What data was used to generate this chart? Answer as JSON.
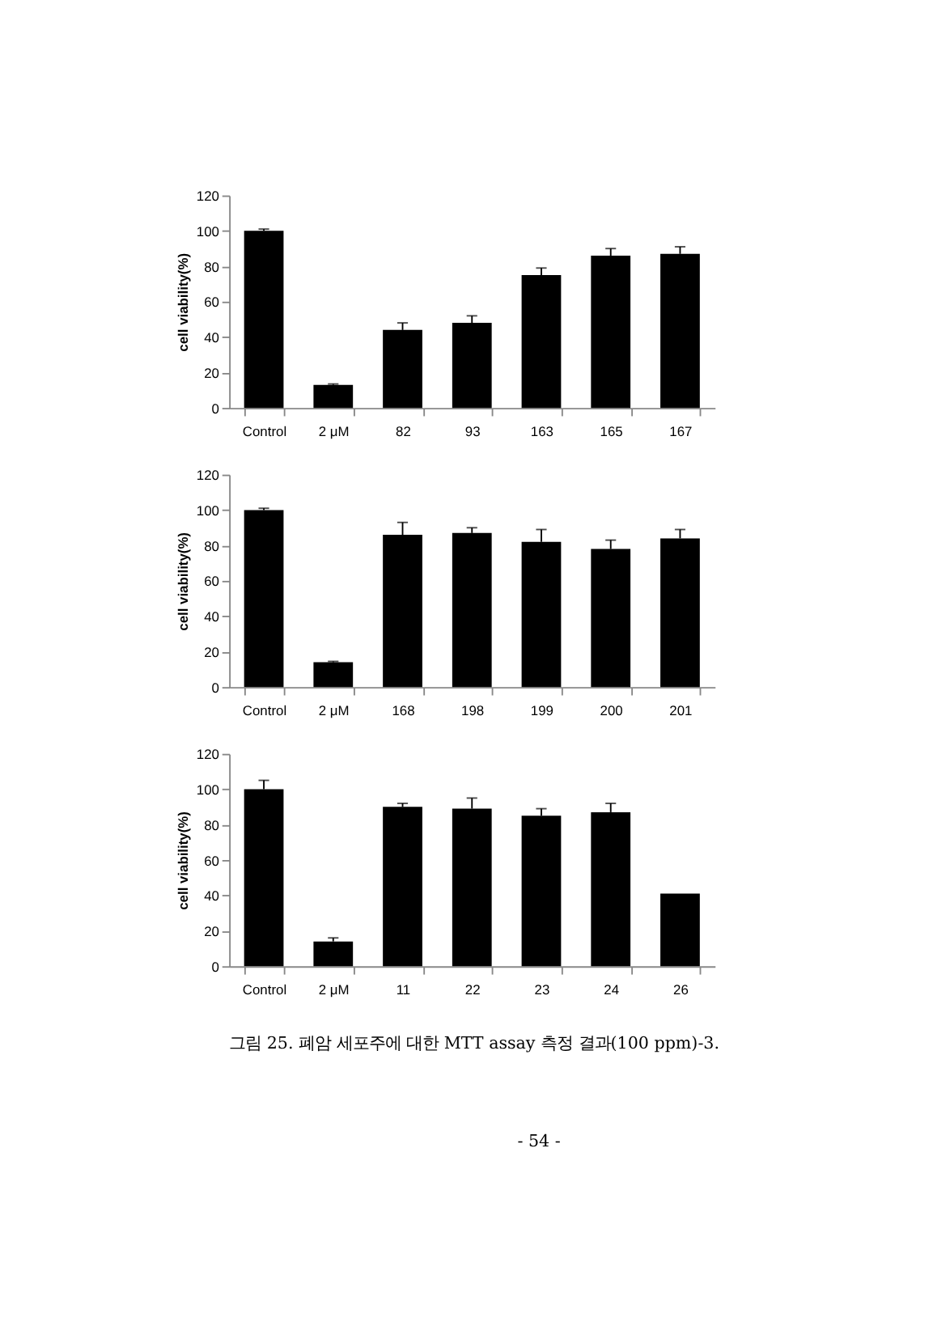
{
  "chart_data": [
    {
      "type": "bar",
      "ylabel": "cell viability(%)",
      "categories": [
        "Control",
        "2 μM",
        "82",
        "93",
        "163",
        "165",
        "167"
      ],
      "values": [
        100,
        13,
        44,
        48,
        75,
        86,
        87
      ],
      "color": "#000000",
      "errors": [
        [
          100,
          101
        ],
        [
          13,
          13.5
        ],
        [
          44,
          48
        ],
        [
          48,
          52
        ],
        [
          75,
          79
        ],
        [
          86,
          90
        ],
        [
          87,
          91
        ]
      ],
      "ylim": [
        0,
        120
      ],
      "yticks": [
        0,
        20,
        40,
        60,
        80,
        100,
        120
      ],
      "grid": false
    },
    {
      "type": "bar",
      "ylabel": "cell viability(%)",
      "categories": [
        "Control",
        "2 μM",
        "168",
        "198",
        "199",
        "200",
        "201"
      ],
      "values": [
        100,
        14,
        86,
        87,
        82,
        78,
        84
      ],
      "color": "#000000",
      "errors": [
        [
          100,
          101
        ],
        [
          14,
          14.5
        ],
        [
          86,
          93
        ],
        [
          87,
          90
        ],
        [
          82,
          89
        ],
        [
          78,
          83
        ],
        [
          84,
          89
        ]
      ],
      "ylim": [
        0,
        120
      ],
      "yticks": [
        0,
        20,
        40,
        60,
        80,
        100,
        120
      ],
      "grid": false
    },
    {
      "type": "bar",
      "ylabel": "cell viability(%)",
      "categories": [
        "Control",
        "2 μM",
        "11",
        "22",
        "23",
        "24",
        "26"
      ],
      "values": [
        100,
        14,
        90,
        89,
        85,
        87,
        41
      ],
      "color": "#000000",
      "errors": [
        [
          100,
          105
        ],
        [
          14,
          16
        ],
        [
          90,
          92
        ],
        [
          89,
          95
        ],
        [
          85,
          89
        ],
        [
          87,
          92
        ],
        null
      ],
      "ylim": [
        0,
        120
      ],
      "yticks": [
        0,
        20,
        40,
        60,
        80,
        100,
        120
      ],
      "grid": false,
      "annotations": [
        "그림 25. 폐암 세포주에 대한 MTT assay 측정 결과(100 ppm)-3.",
        "- 54 -"
      ]
    }
  ]
}
